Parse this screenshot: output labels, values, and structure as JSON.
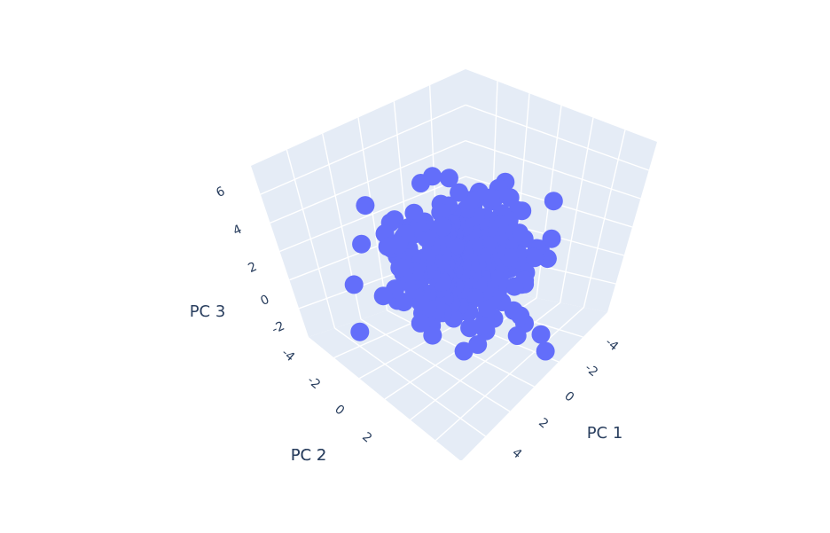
{
  "chart_data": {
    "type": "scatter3d",
    "title": "",
    "marker_color": "#636efa",
    "plot_bgcolor": "#e5ecf6",
    "grid_color": "#ffffff",
    "text_color": "#2a3f5f",
    "axes": {
      "x": {
        "title": "PC 1",
        "ticks": [
          "-4",
          "-2",
          "0",
          "2",
          "4"
        ]
      },
      "y": {
        "title": "PC 2",
        "ticks": [
          "-4",
          "-2",
          "0",
          "2"
        ]
      },
      "z": {
        "title": "PC 3",
        "ticks": [
          "-2",
          "0",
          "2",
          "4",
          "6"
        ]
      }
    },
    "point_cloud": {
      "approx_count": 300,
      "distribution": "roughly spherical cluster centered near the origin",
      "approx_spread_sd": 1.5,
      "visible_outliers": "few points reaching about ±4 on PC 1 and PC 2 and up to about 5 on PC 3"
    }
  }
}
